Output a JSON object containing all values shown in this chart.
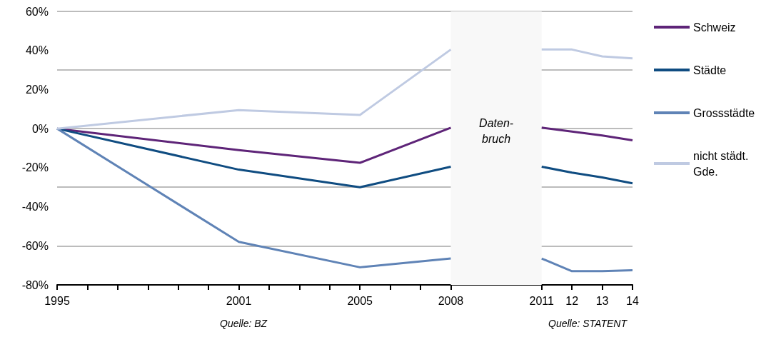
{
  "chart_data": {
    "type": "line",
    "x": [
      1995,
      2001,
      2005,
      2008,
      2011,
      2012,
      2013,
      2014
    ],
    "series": [
      {
        "name": "Schweiz",
        "color": "#5e2478",
        "values": [
          0,
          -11,
          -17.5,
          0.5,
          0.5,
          -1.5,
          -3.5,
          -6
        ]
      },
      {
        "name": "Städte",
        "color": "#0f4c81",
        "values": [
          0,
          -21,
          -30,
          -19.5,
          -19.5,
          -22.5,
          -25,
          -28
        ]
      },
      {
        "name": "Grossstädte",
        "color": "#5f83b6",
        "values": [
          0,
          -58,
          -71,
          -66.5,
          -66.5,
          -73,
          -73,
          -72.5
        ]
      },
      {
        "name": "nicht städt. Gde.",
        "color": "#bfcae2",
        "values": [
          0,
          9.5,
          7,
          40.5,
          40.5,
          40.5,
          37,
          36
        ]
      }
    ],
    "xlim": [
      1995,
      2014
    ],
    "xticks": [
      1995,
      {
        "value": 1996,
        "label": null
      },
      {
        "value": 1997,
        "label": null
      },
      {
        "value": 1998,
        "label": null
      },
      {
        "value": 1999,
        "label": null
      },
      {
        "value": 2000,
        "label": null
      },
      2001,
      {
        "value": 2002,
        "label": null
      },
      {
        "value": 2003,
        "label": null
      },
      {
        "value": 2004,
        "label": null
      },
      2005,
      {
        "value": 2006,
        "label": null
      },
      {
        "value": 2007,
        "label": null
      },
      2008,
      2011,
      {
        "value": 2012,
        "label": "12"
      },
      {
        "value": 2013,
        "label": "13"
      },
      {
        "value": 2014,
        "label": "14"
      }
    ],
    "ylim": [
      -80,
      60
    ],
    "yticks": [
      {
        "value": -80,
        "label": "-80%"
      },
      {
        "value": -60,
        "label": "-60%"
      },
      {
        "value": -40,
        "label": "-40%"
      },
      {
        "value": -20,
        "label": "-20%"
      },
      {
        "value": 0,
        "label": "0%"
      },
      {
        "value": 20,
        "label": "20%"
      },
      {
        "value": 40,
        "label": "40%"
      },
      {
        "value": 60,
        "label": "60%"
      }
    ],
    "bands": [
      {
        "axis": "x",
        "from": 2008,
        "to": 2011,
        "label": "Daten-\nbruch",
        "color": "#f8f8f8"
      }
    ],
    "annotations": [
      "Quelle: BZ",
      "Quelle: STATENT"
    ],
    "grid": "y",
    "legend": "right",
    "marker": "none",
    "line_style": "solid"
  }
}
